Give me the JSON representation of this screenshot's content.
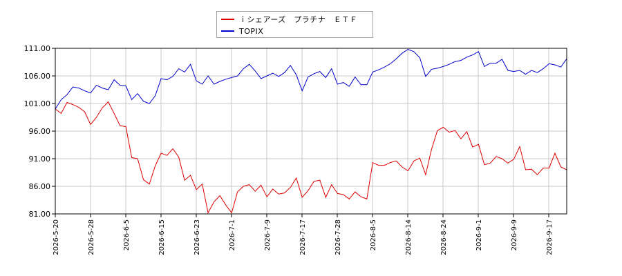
{
  "chart_data": {
    "type": "line",
    "ylim": [
      81,
      111
    ],
    "y_ticks": [
      "81.00",
      "86.00",
      "91.00",
      "96.00",
      "101.00",
      "106.00",
      "111.00"
    ],
    "x_ticks": [
      "2026-5-20",
      "2026-5-28",
      "2026-6-5",
      "2026-6-15",
      "2026-6-23",
      "2026-7-1",
      "2026-7-9",
      "2026-7-17",
      "2026-7-28",
      "2026-8-5",
      "2026-8-14",
      "2026-8-24",
      "2026-9-1",
      "2026-9-9",
      "2026-9-17"
    ],
    "grid": true,
    "legend_position": "top-center",
    "series": [
      {
        "name": "ｉシェアーズ　プラチナ　ＥＴＦ",
        "color": "#dd0000",
        "values": [
          100.0,
          99.2,
          101.2,
          100.8,
          100.3,
          99.5,
          97.2,
          98.5,
          100.2,
          101.3,
          99.2,
          97.0,
          96.8,
          91.2,
          91.0,
          87.2,
          86.4,
          89.7,
          92.0,
          91.6,
          92.8,
          91.3,
          87.1,
          88.0,
          85.4,
          86.4,
          81.2,
          83.2,
          84.3,
          82.6,
          81.2,
          85.0,
          86.0,
          86.3,
          85.1,
          86.2,
          84.1,
          85.5,
          84.6,
          84.8,
          85.8,
          87.5,
          84.0,
          85.2,
          86.9,
          87.1,
          84.0,
          86.3,
          84.7,
          84.5,
          83.7,
          85.0,
          84.1,
          83.7,
          90.3,
          89.8,
          89.8,
          90.3,
          90.6,
          89.5,
          88.8,
          90.6,
          91.1,
          88.1,
          92.7,
          96.1,
          96.7,
          95.8,
          96.1,
          94.6,
          95.9,
          93.1,
          93.6,
          89.9,
          90.2,
          91.4,
          91.0,
          90.2,
          90.9,
          93.2,
          89.0,
          89.1,
          88.1,
          89.3,
          89.3,
          92.0,
          89.5,
          89.0
        ]
      },
      {
        "name": "TOPIX",
        "color": "#0000cc",
        "values": [
          100.0,
          101.7,
          102.6,
          104.0,
          103.8,
          103.3,
          102.9,
          104.3,
          103.8,
          103.5,
          105.3,
          104.3,
          104.2,
          101.7,
          102.8,
          101.4,
          101.0,
          102.4,
          105.5,
          105.3,
          105.9,
          107.3,
          106.7,
          108.1,
          105.1,
          104.5,
          106.0,
          104.5,
          105.0,
          105.4,
          105.7,
          106.0,
          107.3,
          108.1,
          106.9,
          105.5,
          106.0,
          106.5,
          105.9,
          106.6,
          107.9,
          106.2,
          103.3,
          105.8,
          106.4,
          106.8,
          105.7,
          107.3,
          104.5,
          104.8,
          104.1,
          105.8,
          104.4,
          104.4,
          106.7,
          107.1,
          107.6,
          108.2,
          109.1,
          110.1,
          110.8,
          110.4,
          109.3,
          105.9,
          107.2,
          107.4,
          107.7,
          108.1,
          108.6,
          108.8,
          109.4,
          109.8,
          110.4,
          107.7,
          108.3,
          108.3,
          109.0,
          107.0,
          106.8,
          107.0,
          106.3,
          107.0,
          106.6,
          107.3,
          108.2,
          108.0,
          107.6,
          109.1
        ]
      }
    ]
  }
}
